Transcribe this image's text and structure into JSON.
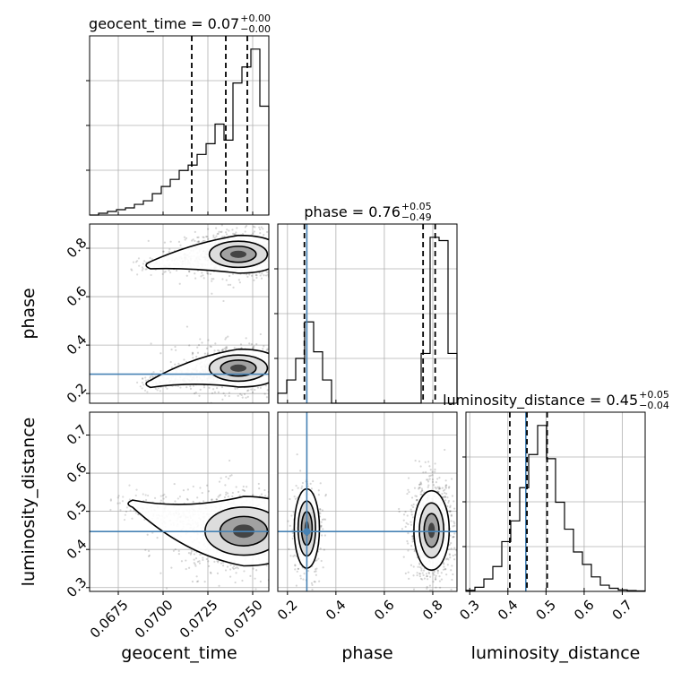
{
  "chart_data": {
    "type": "corner",
    "parameters": [
      "geocent_time",
      "phase",
      "luminosity_distance"
    ],
    "truths": {
      "phase": 0.28,
      "luminosity_distance": 0.447
    },
    "ranges": {
      "geocent_time": [
        0.0659,
        0.0759
      ],
      "phase": [
        0.16,
        0.9
      ],
      "luminosity_distance": [
        0.29,
        0.76
      ]
    },
    "grid": true,
    "titles": [
      {
        "param": "geocent_time",
        "text": "geocent_time = 0.07",
        "plus": "+0.00",
        "minus": "−0.00"
      },
      {
        "param": "phase",
        "text": "phase = 0.76",
        "plus": "+0.05",
        "minus": "−0.49"
      },
      {
        "param": "luminosity_distance",
        "text": "luminosity_distance = 0.45",
        "plus": "+0.05",
        "minus": "−0.04"
      }
    ],
    "ticks": {
      "geocent_time": [
        "0.0675",
        "0.0700",
        "0.0725",
        "0.0750"
      ],
      "phase_x": [
        "0.2",
        "0.4",
        "0.6",
        "0.8"
      ],
      "phase_y": [
        "0.2",
        "0.4",
        "0.6",
        "0.8"
      ],
      "luminosity_distance_x": [
        "0.3",
        "0.4",
        "0.5",
        "0.6",
        "0.7"
      ],
      "luminosity_distance_y": [
        "0.3",
        "0.4",
        "0.5",
        "0.6",
        "0.7"
      ]
    },
    "marginals": {
      "geocent_time": {
        "bin_start": 0.0659,
        "bin_width": 0.0005,
        "counts": [
          0,
          1,
          2,
          3,
          4,
          6,
          8,
          12,
          16,
          20,
          25,
          28,
          34,
          40,
          51,
          42,
          74,
          83,
          93,
          61
        ],
        "quantiles": [
          0.0716,
          0.0735,
          0.0747
        ]
      },
      "phase": {
        "bin_start": 0.16,
        "bin_width": 0.037,
        "counts": [
          6,
          14,
          27,
          49,
          31,
          14,
          0,
          0,
          0,
          0,
          0,
          0,
          0,
          0,
          0,
          0,
          30,
          100,
          98,
          30
        ],
        "quantiles": [
          0.27,
          0.76,
          0.81
        ]
      },
      "luminosity_distance": {
        "bin_start": 0.29,
        "bin_width": 0.0235,
        "counts": [
          0.5,
          2,
          6,
          12,
          24,
          34,
          50,
          66,
          80,
          64,
          43,
          30,
          19,
          13,
          7,
          3,
          1.5,
          0.7,
          0.4,
          0.2
        ],
        "quantiles": [
          0.405,
          0.45,
          0.503
        ]
      }
    },
    "joint": [
      {
        "x": "geocent_time",
        "y": "phase",
        "modes": [
          {
            "x": 0.0742,
            "y": 0.775,
            "sx": 0.0009,
            "sy": 0.03,
            "w": 1,
            "tail": {
              "x": 0.069,
              "y": 0.73
            }
          },
          {
            "x": 0.0742,
            "y": 0.305,
            "sx": 0.0009,
            "sy": 0.03,
            "w": 1,
            "tail": {
              "x": 0.069,
              "y": 0.24
            }
          }
        ]
      },
      {
        "x": "geocent_time",
        "y": "luminosity_distance",
        "modes": [
          {
            "x": 0.0745,
            "y": 0.448,
            "sx": 0.0012,
            "sy": 0.035,
            "w": 1,
            "tail": {
              "x": 0.068,
              "y": 0.52
            }
          }
        ]
      },
      {
        "x": "phase",
        "y": "luminosity_distance",
        "modes": [
          {
            "x": 0.28,
            "y": 0.455,
            "sx": 0.02,
            "sy": 0.04,
            "w": 0.45,
            "tail": null
          },
          {
            "x": 0.795,
            "y": 0.45,
            "sx": 0.028,
            "sy": 0.04,
            "w": 1,
            "tail": null
          }
        ]
      }
    ]
  }
}
